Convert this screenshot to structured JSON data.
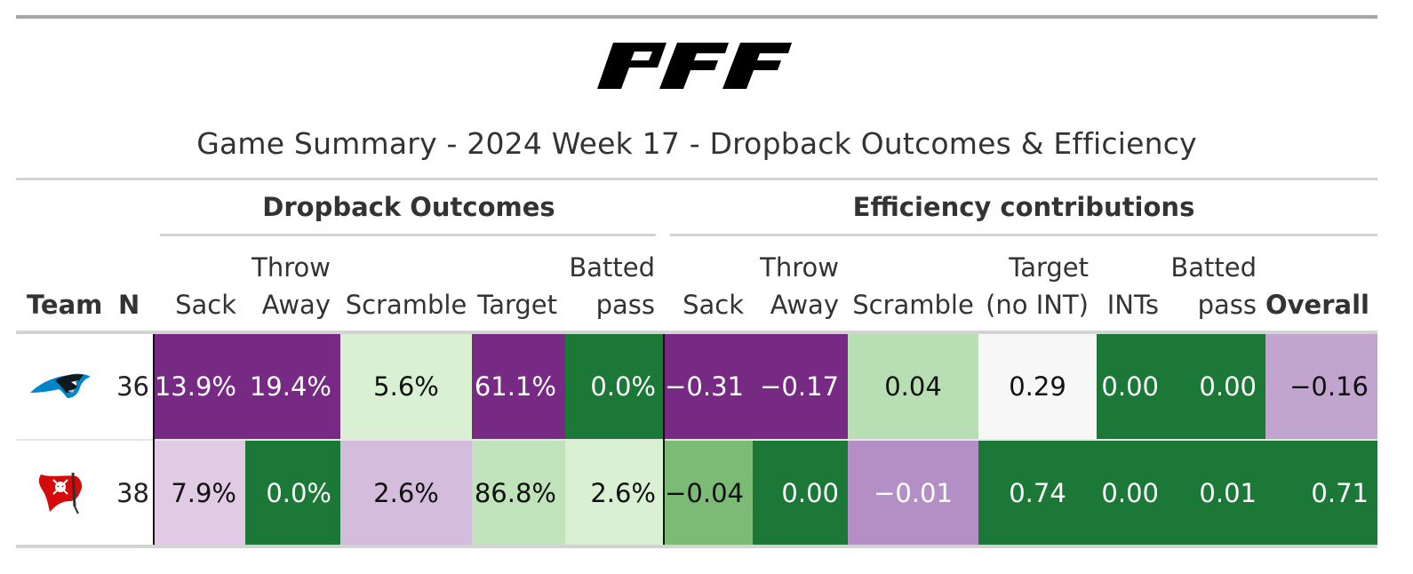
{
  "header": {
    "logo_text": "PFF",
    "title": "Game Summary - 2024 Week 17 - Dropback Outcomes & Efficiency"
  },
  "spanners": {
    "outcomes": "Dropback Outcomes",
    "efficiency": "Efficiency contributions"
  },
  "columns": {
    "team": "Team",
    "n": "N",
    "sack": "Sack",
    "throw_away_1": "Throw",
    "throw_away_2": "Away",
    "scramble": "Scramble",
    "target": "Target",
    "batted_1": "Batted",
    "batted_2": "pass",
    "eff_sack": "Sack",
    "eff_throw_1": "Throw",
    "eff_throw_2": "Away",
    "eff_scramble": "Scramble",
    "eff_target_1": "Target",
    "eff_target_2": "(no INT)",
    "eff_ints": "INTs",
    "eff_batted_1": "Batted",
    "eff_batted_2": "pass",
    "overall": "Overall"
  },
  "rows": [
    {
      "team_icon": "panthers-logo-icon",
      "n": "36",
      "sack": "13.9%",
      "throw_away": "19.4%",
      "scramble": "5.6%",
      "target": "61.1%",
      "batted": "0.0%",
      "eff_sack": "−0.31",
      "eff_throw_away": "−0.17",
      "eff_scramble": "0.04",
      "eff_target": "0.29",
      "eff_ints": "0.00",
      "eff_batted": "0.00",
      "overall": "−0.16"
    },
    {
      "team_icon": "buccaneers-logo-icon",
      "n": "38",
      "sack": "7.9%",
      "throw_away": "0.0%",
      "scramble": "2.6%",
      "target": "86.8%",
      "batted": "2.6%",
      "eff_sack": "−0.04",
      "eff_throw_away": "0.00",
      "eff_scramble": "−0.01",
      "eff_target": "0.74",
      "eff_ints": "0.00",
      "eff_batted": "0.01",
      "overall": "0.71"
    }
  ],
  "colors": {
    "dark_purple": "#762a83",
    "light_purple": "#c2a5cf",
    "pale_purple": "#e7d4e8",
    "mid_purple": "#b48fc6",
    "dark_green": "#1b7837",
    "mid_green": "#7bbb76",
    "light_green": "#b8dfb3",
    "pale_green": "#d9f0d3",
    "neutral": "#f7f7f7"
  }
}
